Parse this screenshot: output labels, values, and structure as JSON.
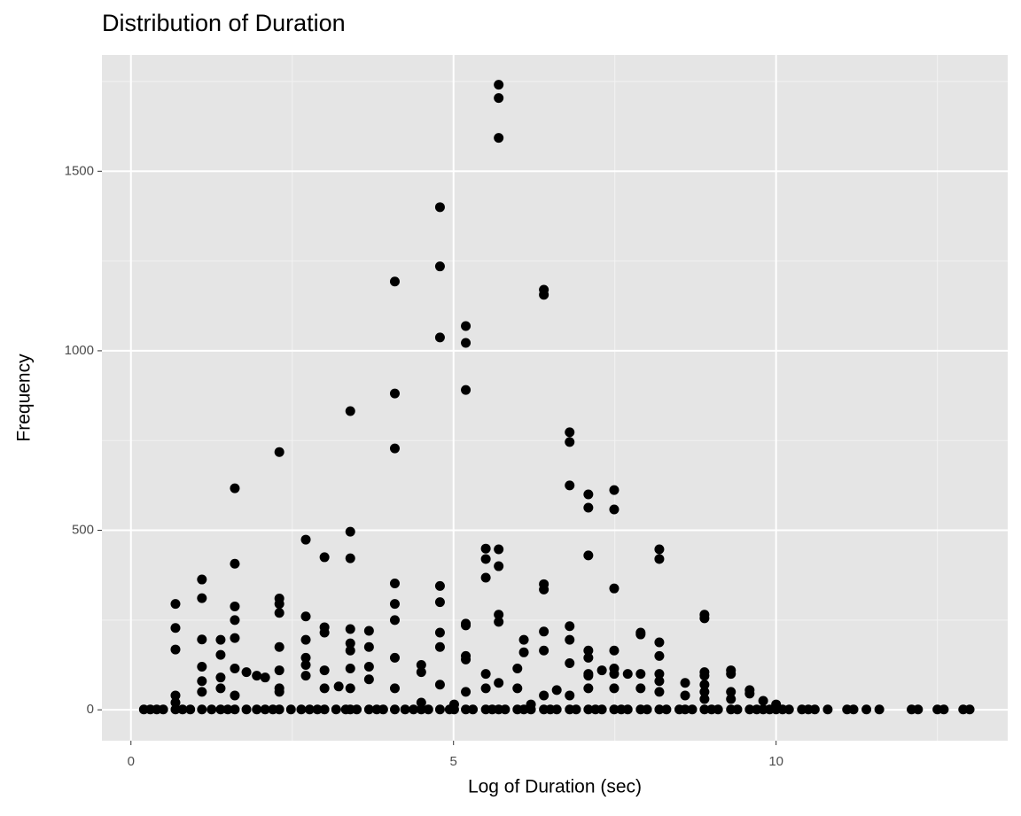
{
  "chart_data": {
    "type": "scatter",
    "title": "Distribution of Duration",
    "x_label": "Log of Duration (sec)",
    "y_label": "Frequency",
    "xlim": [
      -0.45,
      13.59
    ],
    "ylim": [
      -86,
      1824
    ],
    "xticks": [
      0,
      5,
      10
    ],
    "yticks": [
      0,
      500,
      1000,
      1500
    ],
    "minor_xticks": [
      2.5,
      7.5,
      12.5
    ],
    "minor_yticks": [
      250,
      750,
      1250,
      1750
    ],
    "grid": true,
    "series": [
      {
        "color": "#000000",
        "x": [
          5.7,
          5.7,
          5.7,
          4.79,
          4.79,
          4.79,
          4.09,
          4.09,
          4.09,
          5.19,
          5.19,
          5.19,
          6.4,
          6.4,
          3.4,
          2.3,
          1.61,
          6.8,
          6.8,
          6.8,
          7.09,
          7.09,
          7.09,
          7.49,
          7.49,
          7.49,
          8.19,
          8.19,
          5.5,
          5.5,
          5.5,
          5.7,
          5.7,
          3.4,
          3.4,
          3.0,
          2.71,
          1.61,
          1.1,
          1.1,
          1.1,
          0.69,
          0.69,
          0.69,
          1.39,
          1.39,
          1.61,
          1.61,
          1.61,
          1.61,
          2.3,
          2.3,
          2.3,
          2.3,
          2.3,
          2.71,
          2.71,
          2.71,
          2.71,
          3.0,
          3.0,
          3.0,
          3.4,
          3.4,
          3.4,
          3.4,
          3.69,
          3.69,
          3.69,
          4.09,
          4.09,
          4.09,
          4.09,
          4.5,
          4.5,
          4.79,
          4.79,
          4.79,
          4.79,
          5.19,
          5.19,
          5.19,
          5.19,
          5.5,
          5.7,
          5.7,
          5.99,
          6.09,
          6.09,
          6.4,
          6.4,
          6.4,
          6.4,
          6.8,
          6.8,
          6.8,
          7.09,
          7.09,
          7.09,
          7.09,
          7.49,
          7.49,
          7.49,
          7.9,
          7.9,
          7.9,
          8.19,
          8.19,
          8.19,
          8.19,
          8.59,
          8.89,
          8.89,
          8.89,
          8.89,
          8.89,
          8.89,
          9.3,
          9.3,
          9.3,
          9.59,
          9.59,
          0.69,
          0.69,
          1.1,
          1.1,
          1.1,
          1.39,
          1.39,
          1.61,
          1.79,
          1.95,
          2.08,
          2.3,
          2.3,
          2.71,
          3.0,
          3.22,
          3.4,
          3.69,
          4.09,
          4.5,
          4.79,
          5.01,
          5.19,
          5.5,
          5.7,
          5.99,
          6.2,
          6.4,
          6.6,
          6.8,
          7.09,
          7.3,
          7.49,
          7.7,
          7.9,
          8.19,
          8.59,
          8.89,
          9.3,
          9.8,
          10.0,
          0.2,
          0.3,
          0.4,
          0.5,
          0.69,
          0.8,
          0.92,
          1.1,
          1.25,
          1.39,
          1.5,
          1.61,
          1.79,
          1.95,
          2.08,
          2.2,
          2.3,
          2.48,
          2.64,
          2.77,
          2.89,
          3.0,
          3.18,
          3.33,
          3.4,
          3.5,
          3.69,
          3.81,
          3.91,
          4.09,
          4.25,
          4.38,
          4.5,
          4.61,
          4.79,
          4.94,
          5.01,
          5.19,
          5.3,
          5.5,
          5.6,
          5.7,
          5.8,
          5.99,
          6.09,
          6.2,
          6.4,
          6.5,
          6.6,
          6.8,
          6.9,
          7.09,
          7.2,
          7.3,
          7.49,
          7.6,
          7.7,
          7.9,
          8.0,
          8.19,
          8.3,
          8.5,
          8.59,
          8.7,
          8.89,
          9.0,
          9.1,
          9.3,
          9.4,
          9.59,
          9.7,
          9.8,
          9.9,
          10.0,
          10.1,
          10.2,
          10.4,
          10.5,
          10.6,
          10.8,
          11.1,
          11.2,
          11.4,
          11.6,
          12.1,
          12.2,
          12.5,
          12.6,
          12.9,
          13.0
        ],
        "values": [
          1741,
          1704,
          1593,
          1400,
          1235,
          1037,
          1193,
          881,
          728,
          1069,
          1022,
          891,
          1170,
          1156,
          832,
          718,
          617,
          773,
          746,
          625,
          600,
          563,
          430,
          612,
          558,
          338,
          447,
          420,
          449,
          420,
          368,
          447,
          400,
          496,
          422,
          425,
          474,
          407,
          363,
          311,
          196,
          295,
          228,
          168,
          195,
          153,
          288,
          250,
          200,
          115,
          310,
          295,
          270,
          175,
          110,
          260,
          195,
          145,
          125,
          230,
          215,
          110,
          225,
          185,
          165,
          115,
          220,
          175,
          120,
          352,
          295,
          250,
          145,
          125,
          105,
          345,
          300,
          215,
          175,
          240,
          235,
          150,
          140,
          100,
          265,
          245,
          115,
          195,
          160,
          350,
          335,
          218,
          165,
          233,
          195,
          130,
          165,
          145,
          100,
          95,
          165,
          115,
          100,
          210,
          215,
          100,
          188,
          150,
          100,
          50,
          75,
          265,
          255,
          105,
          95,
          70,
          50,
          110,
          100,
          50,
          55,
          45,
          40,
          20,
          50,
          80,
          120,
          60,
          90,
          40,
          105,
          95,
          90,
          50,
          60,
          95,
          60,
          65,
          60,
          85,
          60,
          20,
          70,
          15,
          50,
          60,
          75,
          60,
          15,
          40,
          55,
          40,
          60,
          110,
          60,
          100,
          60,
          80,
          40,
          30,
          30,
          25,
          15,
          1,
          1,
          1,
          1,
          1,
          1,
          1,
          1,
          1,
          1,
          1,
          1,
          1,
          1,
          1,
          1,
          1,
          1,
          1,
          1,
          1,
          1,
          1,
          1,
          1,
          1,
          1,
          1,
          1,
          1,
          1,
          1,
          1,
          1,
          1,
          1,
          1,
          1,
          1,
          1,
          1,
          1,
          1,
          1,
          1,
          1,
          1,
          1,
          1,
          1,
          1,
          1,
          1,
          1,
          1,
          1,
          1,
          1,
          1,
          1,
          1,
          1,
          1,
          1,
          1,
          1,
          1,
          1,
          1,
          1,
          1,
          1,
          1,
          1,
          1,
          1,
          1,
          1,
          1,
          1,
          1,
          1,
          1,
          1,
          1,
          1,
          1,
          1,
          1,
          1
        ]
      }
    ]
  }
}
